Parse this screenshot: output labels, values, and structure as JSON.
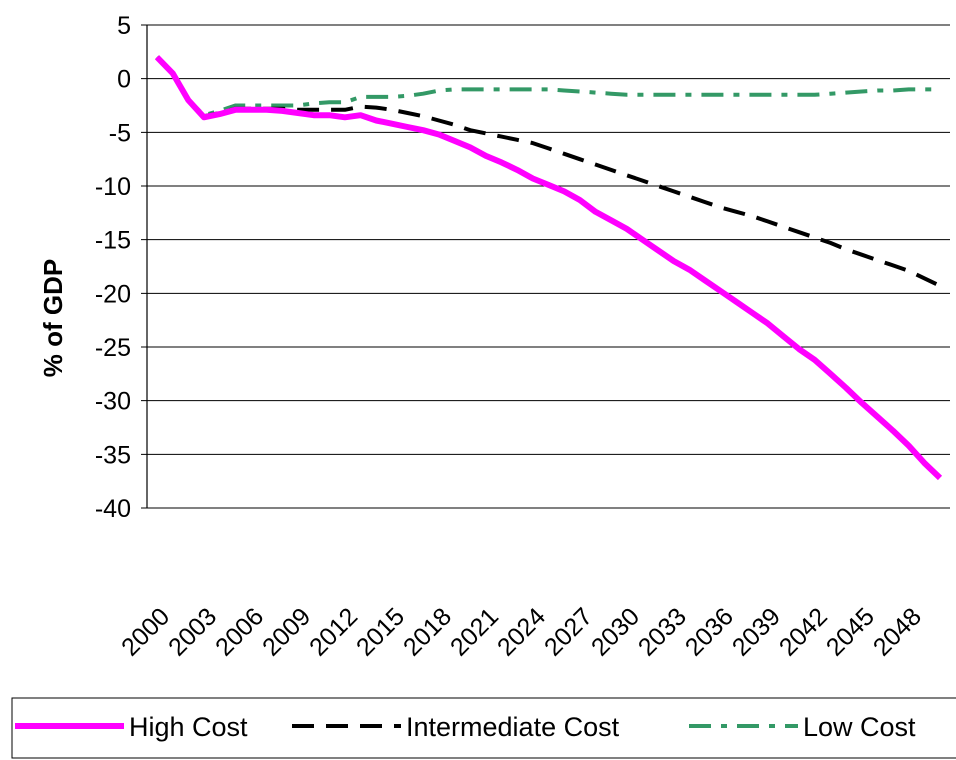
{
  "chart_data": {
    "type": "line",
    "title": "",
    "xlabel": "",
    "ylabel": "% of GDP",
    "ylim": [
      -40,
      5
    ],
    "yticks": [
      5,
      0,
      -5,
      -10,
      -15,
      -20,
      -25,
      -30,
      -35,
      -40
    ],
    "xticks": [
      2000,
      2003,
      2006,
      2009,
      2012,
      2015,
      2018,
      2021,
      2024,
      2027,
      2030,
      2033,
      2036,
      2039,
      2042,
      2045,
      2048
    ],
    "xlim": [
      2000,
      2050
    ],
    "grid": "horizontal",
    "legend_position": "bottom",
    "x": [
      2000,
      2001,
      2002,
      2003,
      2004,
      2005,
      2006,
      2007,
      2008,
      2009,
      2010,
      2011,
      2012,
      2013,
      2014,
      2015,
      2016,
      2017,
      2018,
      2019,
      2020,
      2021,
      2022,
      2023,
      2024,
      2025,
      2026,
      2027,
      2028,
      2029,
      2030,
      2031,
      2032,
      2033,
      2034,
      2035,
      2036,
      2037,
      2038,
      2039,
      2040,
      2041,
      2042,
      2043,
      2044,
      2045,
      2046,
      2047,
      2048,
      2049,
      2050
    ],
    "series": [
      {
        "name": "High Cost",
        "color": "#FF00FF",
        "style": "solid",
        "values": [
          2.0,
          0.5,
          -2.0,
          -3.6,
          -3.3,
          -2.9,
          -2.9,
          -2.9,
          -3.0,
          -3.2,
          -3.4,
          -3.4,
          -3.6,
          -3.4,
          -3.9,
          -4.2,
          -4.5,
          -4.8,
          -5.2,
          -5.8,
          -6.4,
          -7.2,
          -7.8,
          -8.5,
          -9.3,
          -9.9,
          -10.5,
          -11.3,
          -12.4,
          -13.2,
          -14.0,
          -15.0,
          -16.0,
          -17.0,
          -17.8,
          -18.8,
          -19.8,
          -20.8,
          -21.8,
          -22.8,
          -24.0,
          -25.2,
          -26.2,
          -27.5,
          -28.8,
          -30.2,
          -31.5,
          -32.8,
          -34.2,
          -35.8,
          -37.2
        ]
      },
      {
        "name": "Intermediate Cost",
        "color": "#000000",
        "style": "dashed",
        "values": [
          2.0,
          0.5,
          -2.0,
          -3.5,
          -3.2,
          -2.8,
          -2.8,
          -2.8,
          -2.8,
          -2.9,
          -2.9,
          -2.9,
          -2.9,
          -2.6,
          -2.7,
          -2.9,
          -3.2,
          -3.5,
          -3.9,
          -4.3,
          -4.8,
          -5.1,
          -5.4,
          -5.7,
          -6.0,
          -6.5,
          -7.0,
          -7.5,
          -8.0,
          -8.5,
          -9.0,
          -9.5,
          -10.0,
          -10.5,
          -11.0,
          -11.5,
          -12.0,
          -12.4,
          -12.8,
          -13.3,
          -13.8,
          -14.3,
          -14.8,
          -15.3,
          -15.9,
          -16.4,
          -16.9,
          -17.4,
          -17.9,
          -18.6,
          -19.3
        ]
      },
      {
        "name": "Low Cost",
        "color": "#339966",
        "style": "dash-dot",
        "values": [
          2.0,
          0.5,
          -2.0,
          -3.4,
          -3.0,
          -2.5,
          -2.5,
          -2.5,
          -2.5,
          -2.5,
          -2.3,
          -2.2,
          -2.2,
          -1.7,
          -1.7,
          -1.7,
          -1.6,
          -1.4,
          -1.1,
          -1.0,
          -1.0,
          -1.0,
          -1.0,
          -1.0,
          -1.0,
          -1.0,
          -1.1,
          -1.2,
          -1.3,
          -1.4,
          -1.5,
          -1.5,
          -1.5,
          -1.5,
          -1.5,
          -1.5,
          -1.5,
          -1.5,
          -1.5,
          -1.5,
          -1.5,
          -1.5,
          -1.5,
          -1.4,
          -1.3,
          -1.2,
          -1.1,
          -1.1,
          -1.0,
          -1.0,
          -1.0
        ]
      }
    ]
  }
}
